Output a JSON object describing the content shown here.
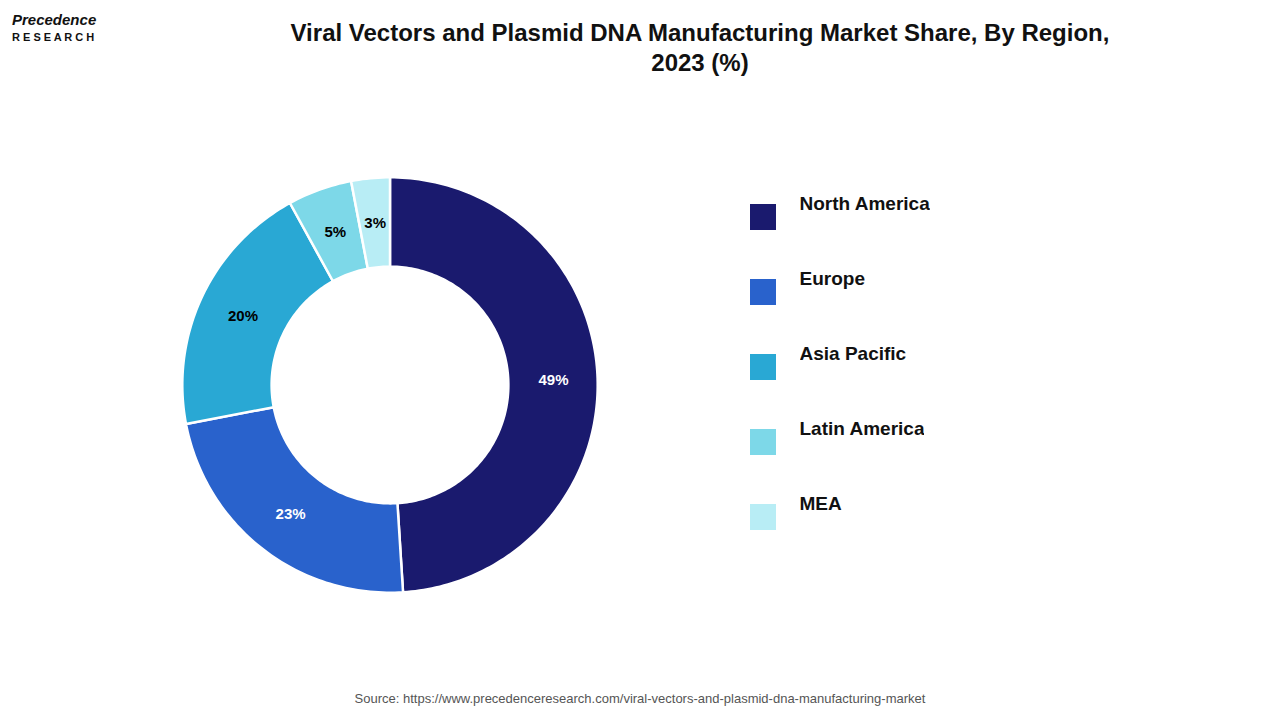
{
  "chart_data": {
    "type": "donut",
    "title": "Viral Vectors and Plasmid DNA Manufacturing Market Share, By Region,\n2023 (%)",
    "categories": [
      "North America",
      "Europe",
      "Asia Pacific",
      "Latin America",
      "MEA"
    ],
    "values": [
      49,
      23,
      20,
      5,
      3
    ],
    "value_labels": [
      "49%",
      "23%",
      "20%",
      "5%",
      "3%"
    ],
    "colors": [
      "#1a1a6e",
      "#2962cc",
      "#29a8d4",
      "#7dd8e8",
      "#b8edf5"
    ],
    "data_labels": true,
    "legend": "right",
    "annotations": [
      "Precedence",
      "R E S E A R C H"
    ],
    "caption": "Source: https://www.precedenceresearch.com/viral-vectors-and-plasmid-dna-manufacturing-market"
  }
}
